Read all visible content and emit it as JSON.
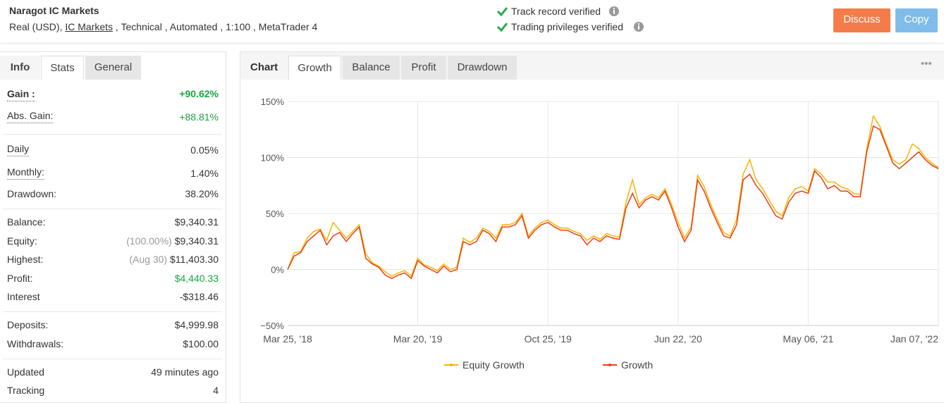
{
  "header": {
    "title": "Naragot IC Markets",
    "details": [
      "Real (USD), ",
      "IC Markets",
      " , Technical , Automated , 1:100 , MetaTrader 4"
    ],
    "verified": [
      "Track record verified",
      "Trading privileges verified"
    ],
    "buttons": [
      "Discuss",
      "Copy"
    ]
  },
  "info_panel": {
    "tabs": [
      "Info",
      "Stats",
      "General"
    ],
    "rows": [
      {
        "label": "Gain :",
        "value": "+90.62%"
      },
      {
        "label": "Abs. Gain:",
        "value": "+88.81%"
      },
      {
        "label": "Daily",
        "value": "0.05%"
      },
      {
        "label": "Monthly:",
        "value": "1.40%"
      },
      {
        "label": "Drawdown:",
        "value": "38.20%"
      },
      {
        "label": "Balance:",
        "value": "$9,340.31"
      },
      {
        "label": "Equity:",
        "note": "(100.00%)",
        "value": "$9,340.31"
      },
      {
        "label": "Highest:",
        "note": "(Aug 30)",
        "value": "$11,403.30"
      },
      {
        "label": "Profit:",
        "value": "$4,440.33"
      },
      {
        "label": "Interest",
        "value": "-$318.46"
      },
      {
        "label": "Deposits:",
        "value": "$4,999.98"
      },
      {
        "label": "Withdrawals:",
        "value": "$100.00"
      },
      {
        "label": "Updated",
        "value": "49 minutes ago"
      },
      {
        "label": "Tracking",
        "value": "4"
      }
    ]
  },
  "chart_panel": {
    "label": "Chart",
    "tabs": [
      "Growth",
      "Balance",
      "Profit",
      "Drawdown"
    ],
    "menu": "•••"
  },
  "chart_data": {
    "type": "line",
    "categories": [
      "Mar 25, '18",
      null,
      null,
      null,
      null,
      null,
      null,
      null,
      null,
      null,
      null,
      null,
      null,
      null,
      null,
      null,
      null,
      null,
      null,
      null,
      "Mar 20, '19",
      null,
      null,
      null,
      null,
      null,
      null,
      null,
      null,
      null,
      null,
      null,
      null,
      null,
      null,
      null,
      null,
      null,
      null,
      null,
      "Oct 25, '19",
      null,
      null,
      null,
      null,
      null,
      null,
      null,
      null,
      null,
      null,
      null,
      null,
      null,
      null,
      null,
      null,
      null,
      null,
      null,
      "Jun 22, '20",
      null,
      null,
      null,
      null,
      null,
      null,
      null,
      null,
      null,
      null,
      null,
      null,
      null,
      null,
      null,
      null,
      null,
      null,
      null,
      "May 06, '21",
      null,
      null,
      null,
      null,
      null,
      null,
      null,
      null,
      null,
      null,
      null,
      null,
      null,
      null,
      null,
      null,
      null,
      null,
      null,
      "Jan 07, '22"
    ],
    "series": [
      {
        "name": "Equity Growth",
        "color": "#f7b500",
        "values": [
          0,
          15,
          16,
          28,
          34,
          36,
          26,
          42,
          35,
          28,
          34,
          40,
          14,
          6,
          3,
          -2,
          -6,
          -3,
          -1,
          -6,
          10,
          4,
          2,
          -1,
          5,
          0,
          2,
          28,
          24,
          28,
          37,
          34,
          28,
          40,
          40,
          42,
          50,
          30,
          37,
          42,
          44,
          40,
          37,
          37,
          34,
          32,
          26,
          30,
          27,
          32,
          30,
          29,
          60,
          80,
          58,
          64,
          67,
          64,
          72,
          58,
          42,
          28,
          38,
          84,
          74,
          58,
          45,
          33,
          30,
          45,
          85,
          98,
          80,
          72,
          62,
          52,
          48,
          64,
          72,
          74,
          70,
          90,
          85,
          78,
          78,
          74,
          72,
          68,
          67,
          108,
          137,
          128,
          112,
          98,
          94,
          98,
          112,
          108,
          100,
          95,
          91
        ]
      },
      {
        "name": "Growth",
        "color": "#e8401c",
        "values": [
          0,
          12,
          15,
          25,
          30,
          35,
          22,
          30,
          33,
          25,
          32,
          38,
          10,
          5,
          2,
          -5,
          -8,
          -5,
          -3,
          -8,
          8,
          3,
          0,
          -3,
          3,
          -2,
          0,
          25,
          22,
          25,
          35,
          32,
          25,
          38,
          38,
          40,
          48,
          28,
          35,
          40,
          42,
          38,
          35,
          35,
          32,
          30,
          22,
          28,
          25,
          30,
          28,
          27,
          55,
          68,
          55,
          62,
          65,
          62,
          70,
          55,
          38,
          25,
          35,
          80,
          70,
          55,
          42,
          30,
          28,
          40,
          80,
          85,
          75,
          68,
          58,
          48,
          45,
          60,
          68,
          70,
          68,
          88,
          82,
          72,
          75,
          70,
          70,
          65,
          65,
          105,
          128,
          125,
          110,
          95,
          90,
          95,
          100,
          105,
          98,
          93,
          90
        ]
      }
    ],
    "ylim": [
      -50,
      150
    ],
    "yticks": [
      {
        "value": -50,
        "label": "−50%"
      },
      {
        "value": 0,
        "label": "0%"
      },
      {
        "value": 50,
        "label": "50%"
      },
      {
        "value": 100,
        "label": "100%"
      },
      {
        "value": 150,
        "label": "150%"
      }
    ],
    "grid": true,
    "legend": "bottom"
  }
}
